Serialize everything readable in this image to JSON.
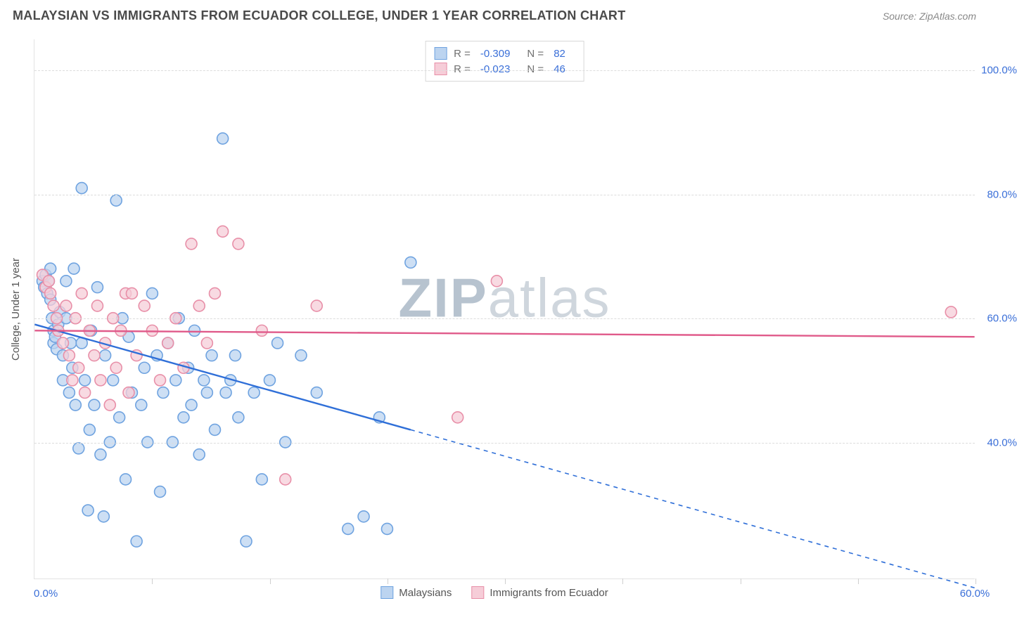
{
  "header": {
    "title": "MALAYSIAN VS IMMIGRANTS FROM ECUADOR COLLEGE, UNDER 1 YEAR CORRELATION CHART",
    "source_prefix": "Source: ",
    "source_name": "ZipAtlas.com"
  },
  "watermark": {
    "zip": "ZIP",
    "atlas": "atlas"
  },
  "chart": {
    "type": "scatter",
    "axis_title_y": "College, Under 1 year",
    "xlim": [
      0,
      60
    ],
    "ylim": [
      18,
      105
    ],
    "x_ticks": [
      0,
      7.5,
      15,
      22.5,
      30,
      37.5,
      45,
      52.5,
      60
    ],
    "x_tick_labels_shown": {
      "start": "0.0%",
      "end": "60.0%",
      "end_pos": 60
    },
    "y_gridlines": [
      40,
      60,
      80,
      100
    ],
    "y_labels": [
      "40.0%",
      "60.0%",
      "80.0%",
      "100.0%"
    ],
    "grid_color": "#dcdcdc",
    "background_color": "#ffffff",
    "marker_radius": 8,
    "marker_stroke_width": 1.6,
    "series": [
      {
        "key": "malaysians",
        "label": "Malaysians",
        "color_fill": "#bcd4f0",
        "color_stroke": "#6fa3e0",
        "line_color": "#2f6fd8",
        "R": "-0.309",
        "N": "82",
        "trend": {
          "x1": 0,
          "y1": 59,
          "x2_solid": 24,
          "y2_solid": 42,
          "x2": 60,
          "y2": 16.5
        },
        "points": [
          [
            0.5,
            66
          ],
          [
            0.6,
            65
          ],
          [
            0.7,
            67
          ],
          [
            0.8,
            64
          ],
          [
            0.9,
            66
          ],
          [
            1.0,
            68
          ],
          [
            1.0,
            63
          ],
          [
            1.1,
            60
          ],
          [
            1.2,
            58
          ],
          [
            1.2,
            56
          ],
          [
            1.3,
            57
          ],
          [
            1.4,
            55
          ],
          [
            1.5,
            59
          ],
          [
            1.6,
            61
          ],
          [
            1.8,
            54
          ],
          [
            1.8,
            50
          ],
          [
            2.0,
            66
          ],
          [
            2.0,
            60
          ],
          [
            2.2,
            48
          ],
          [
            2.3,
            56
          ],
          [
            2.4,
            52
          ],
          [
            2.5,
            68
          ],
          [
            2.6,
            46
          ],
          [
            2.8,
            39
          ],
          [
            3.0,
            81
          ],
          [
            3.0,
            56
          ],
          [
            3.2,
            50
          ],
          [
            3.4,
            29
          ],
          [
            3.5,
            42
          ],
          [
            3.6,
            58
          ],
          [
            3.8,
            46
          ],
          [
            4.0,
            65
          ],
          [
            4.2,
            38
          ],
          [
            4.4,
            28
          ],
          [
            4.5,
            54
          ],
          [
            4.8,
            40
          ],
          [
            5.0,
            50
          ],
          [
            5.2,
            79
          ],
          [
            5.4,
            44
          ],
          [
            5.6,
            60
          ],
          [
            5.8,
            34
          ],
          [
            6.0,
            57
          ],
          [
            6.2,
            48
          ],
          [
            6.5,
            24
          ],
          [
            6.8,
            46
          ],
          [
            7.0,
            52
          ],
          [
            7.2,
            40
          ],
          [
            7.5,
            64
          ],
          [
            7.8,
            54
          ],
          [
            8.0,
            32
          ],
          [
            8.2,
            48
          ],
          [
            8.5,
            56
          ],
          [
            8.8,
            40
          ],
          [
            9.0,
            50
          ],
          [
            9.2,
            60
          ],
          [
            9.5,
            44
          ],
          [
            9.8,
            52
          ],
          [
            10.0,
            46
          ],
          [
            10.2,
            58
          ],
          [
            10.5,
            38
          ],
          [
            10.8,
            50
          ],
          [
            11.0,
            48
          ],
          [
            11.3,
            54
          ],
          [
            11.5,
            42
          ],
          [
            12.0,
            89
          ],
          [
            12.2,
            48
          ],
          [
            12.5,
            50
          ],
          [
            12.8,
            54
          ],
          [
            13.0,
            44
          ],
          [
            13.5,
            24
          ],
          [
            14.0,
            48
          ],
          [
            14.5,
            34
          ],
          [
            15.0,
            50
          ],
          [
            15.5,
            56
          ],
          [
            16.0,
            40
          ],
          [
            17.0,
            54
          ],
          [
            18.0,
            48
          ],
          [
            20.0,
            26
          ],
          [
            22.0,
            44
          ],
          [
            24.0,
            69
          ],
          [
            21.0,
            28
          ],
          [
            22.5,
            26
          ]
        ]
      },
      {
        "key": "ecuador",
        "label": "Immigrants from Ecuador",
        "color_fill": "#f6cdd8",
        "color_stroke": "#e88fa8",
        "line_color": "#e05a8a",
        "R": "-0.023",
        "N": "46",
        "trend": {
          "x1": 0,
          "y1": 58,
          "x2_solid": 60,
          "y2_solid": 57,
          "x2": 60,
          "y2": 57
        },
        "points": [
          [
            0.5,
            67
          ],
          [
            0.7,
            65
          ],
          [
            0.9,
            66
          ],
          [
            1.0,
            64
          ],
          [
            1.2,
            62
          ],
          [
            1.4,
            60
          ],
          [
            1.5,
            58
          ],
          [
            1.8,
            56
          ],
          [
            2.0,
            62
          ],
          [
            2.2,
            54
          ],
          [
            2.4,
            50
          ],
          [
            2.6,
            60
          ],
          [
            2.8,
            52
          ],
          [
            3.0,
            64
          ],
          [
            3.2,
            48
          ],
          [
            3.5,
            58
          ],
          [
            3.8,
            54
          ],
          [
            4.0,
            62
          ],
          [
            4.2,
            50
          ],
          [
            4.5,
            56
          ],
          [
            4.8,
            46
          ],
          [
            5.0,
            60
          ],
          [
            5.2,
            52
          ],
          [
            5.5,
            58
          ],
          [
            5.8,
            64
          ],
          [
            6.0,
            48
          ],
          [
            6.5,
            54
          ],
          [
            7.0,
            62
          ],
          [
            7.5,
            58
          ],
          [
            8.0,
            50
          ],
          [
            8.5,
            56
          ],
          [
            9.0,
            60
          ],
          [
            9.5,
            52
          ],
          [
            10.0,
            72
          ],
          [
            10.5,
            62
          ],
          [
            11.0,
            56
          ],
          [
            11.5,
            64
          ],
          [
            12.0,
            74
          ],
          [
            13.0,
            72
          ],
          [
            14.5,
            58
          ],
          [
            16.0,
            34
          ],
          [
            18.0,
            62
          ],
          [
            27.0,
            44
          ],
          [
            29.5,
            66
          ],
          [
            58.5,
            61
          ],
          [
            6.2,
            64
          ]
        ]
      }
    ]
  },
  "legend_top": {
    "r_label": "R =",
    "n_label": "N ="
  }
}
